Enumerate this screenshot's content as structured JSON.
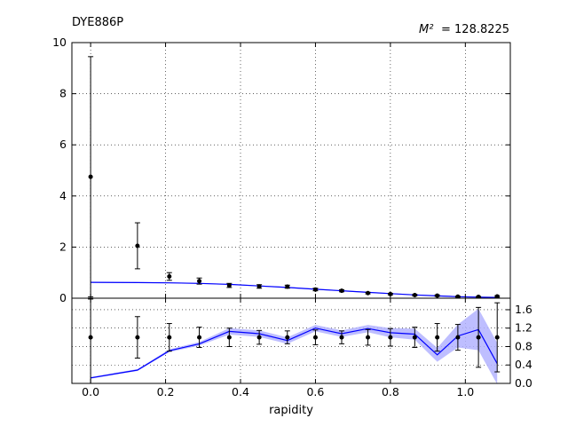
{
  "figure": {
    "dataset_label": "DYE886P",
    "chi2_symbol": "M²",
    "chi2_text": "= 128.8225",
    "xlabel": "rapidity"
  },
  "chart_data": [
    {
      "type": "line",
      "panel": "main",
      "title": "DYE886P",
      "xlabel": "",
      "ylabel": "",
      "xlim": [
        -0.05,
        1.12
      ],
      "ylim": [
        0,
        10
      ],
      "xticks": [
        0.0,
        0.2,
        0.4,
        0.6,
        0.8,
        1.0
      ],
      "yticks": [
        0,
        2,
        4,
        6,
        8,
        10
      ],
      "grid": true,
      "series": [
        {
          "kind": "errorbar",
          "color": "#000000",
          "x": [
            0.0,
            0.125,
            0.21,
            0.29,
            0.37,
            0.45,
            0.525,
            0.6,
            0.67,
            0.74,
            0.8,
            0.865,
            0.925,
            0.98,
            1.035,
            1.085
          ],
          "y": [
            4.75,
            2.05,
            0.85,
            0.67,
            0.5,
            0.46,
            0.45,
            0.34,
            0.29,
            0.2,
            0.16,
            0.12,
            0.1,
            0.06,
            0.05,
            0.07
          ],
          "yerr": [
            4.7,
            0.9,
            0.15,
            0.12,
            0.08,
            0.07,
            0.06,
            0.05,
            0.04,
            0.03,
            0.03,
            0.03,
            0.03,
            0.02,
            0.02,
            0.03
          ]
        },
        {
          "kind": "line",
          "color": "#0000ff",
          "band_color": "#b3b3ff",
          "x": [
            0.0,
            0.125,
            0.21,
            0.29,
            0.37,
            0.45,
            0.525,
            0.6,
            0.67,
            0.74,
            0.8,
            0.865,
            0.925,
            0.98,
            1.035,
            1.085
          ],
          "y": [
            0.62,
            0.61,
            0.6,
            0.58,
            0.54,
            0.48,
            0.42,
            0.35,
            0.29,
            0.23,
            0.18,
            0.13,
            0.09,
            0.06,
            0.04,
            0.03
          ],
          "band": [
            0.02,
            0.02,
            0.02,
            0.02,
            0.02,
            0.02,
            0.02,
            0.02,
            0.02,
            0.02,
            0.02,
            0.02,
            0.02,
            0.02,
            0.02,
            0.02
          ]
        }
      ]
    },
    {
      "type": "line",
      "panel": "ratio",
      "xlabel": "rapidity",
      "ylabel": "",
      "xlim": [
        -0.05,
        1.12
      ],
      "ylim": [
        0.0,
        1.85
      ],
      "yticks": [
        0.0,
        0.4,
        0.8,
        1.2,
        1.6
      ],
      "ytick_labels": [
        "0.0",
        "0.4",
        "0.8",
        "1.2",
        "1.6"
      ],
      "grid": true,
      "series": [
        {
          "kind": "errorbar",
          "color": "#000000",
          "x": [
            0.0,
            0.125,
            0.21,
            0.29,
            0.37,
            0.45,
            0.525,
            0.6,
            0.67,
            0.74,
            0.8,
            0.865,
            0.925,
            0.98,
            1.035,
            1.085
          ],
          "y": [
            1.0,
            1.0,
            1.0,
            1.0,
            1.0,
            1.0,
            1.0,
            1.0,
            1.0,
            1.0,
            1.0,
            1.0,
            1.0,
            1.0,
            1.0,
            1.0
          ],
          "yerr": [
            1.0,
            0.45,
            0.3,
            0.22,
            0.2,
            0.15,
            0.14,
            0.16,
            0.14,
            0.17,
            0.19,
            0.22,
            0.3,
            0.28,
            0.65,
            0.75
          ]
        },
        {
          "kind": "line",
          "color": "#0000ff",
          "band_color": "#b3b3ff",
          "x": [
            0.0,
            0.125,
            0.21,
            0.29,
            0.37,
            0.45,
            0.525,
            0.6,
            0.67,
            0.74,
            0.8,
            0.865,
            0.925,
            0.98,
            1.035,
            1.085
          ],
          "y": [
            0.12,
            0.29,
            0.71,
            0.86,
            1.13,
            1.08,
            0.93,
            1.2,
            1.08,
            1.19,
            1.1,
            1.07,
            0.62,
            1.03,
            1.17,
            0.43
          ],
          "band": [
            0.02,
            0.02,
            0.03,
            0.04,
            0.07,
            0.07,
            0.07,
            0.07,
            0.07,
            0.08,
            0.1,
            0.12,
            0.15,
            0.25,
            0.45,
            0.45
          ]
        }
      ]
    }
  ]
}
